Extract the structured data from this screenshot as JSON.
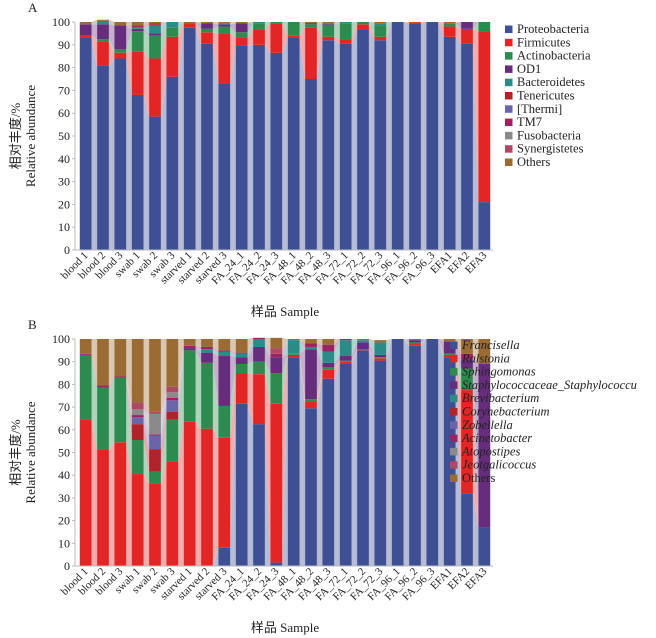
{
  "chart_data": [
    {
      "type": "bar",
      "stacked": true,
      "panel": "A",
      "title": "",
      "xlabel": "样品 Sample",
      "ylabel_cn": "相对丰度/%",
      "ylabel": "Relative abundance",
      "ylim": [
        0,
        100
      ],
      "yticks": [
        0,
        10,
        20,
        30,
        40,
        50,
        60,
        70,
        80,
        90,
        100
      ],
      "legend_position": "right",
      "categories": [
        "blood 1",
        "blood 2",
        "blood 3",
        "swab 1",
        "swab 2",
        "swab 3",
        "starved 1",
        "starved 2",
        "starved 3",
        "FA_24_1",
        "FA_24_2",
        "FA_24_3",
        "FA_48_1",
        "FA_48_2",
        "FA_48_3",
        "FA_72_1",
        "FA_72_2",
        "FA_72_3",
        "FA_96_1",
        "FA_96_2",
        "FA_96_3",
        "EFA1",
        "EFA2",
        "EFA3"
      ],
      "series": [
        {
          "name": "Proteobacteria",
          "italic": false,
          "color": "#3f4f94",
          "values": [
            93,
            81,
            84,
            68,
            58.5,
            76,
            97.5,
            90.5,
            73,
            89.5,
            90,
            86.5,
            93,
            75,
            92,
            90.5,
            96.5,
            92,
            100,
            99.5,
            100,
            93.5,
            90.5,
            21
          ]
        },
        {
          "name": "Firmicutes",
          "italic": false,
          "color": "#e32526",
          "values": [
            1,
            10.5,
            2.5,
            19,
            25.5,
            17.5,
            2,
            5,
            22,
            3.5,
            6.5,
            13,
            1,
            22.5,
            1.5,
            2,
            2.5,
            1.5,
            0,
            0.3,
            0,
            4.5,
            6.5,
            75
          ]
        },
        {
          "name": "Actinobacteria",
          "italic": false,
          "color": "#2e8b4f",
          "values": [
            0,
            1,
            1.5,
            9,
            10,
            4,
            0,
            1.5,
            3,
            2.5,
            3,
            0.5,
            6,
            1.5,
            5,
            7,
            1,
            5,
            0,
            0,
            0,
            1.5,
            0,
            4
          ]
        },
        {
          "name": "OD1",
          "italic": false,
          "color": "#662d7c",
          "values": [
            5,
            6.5,
            10.5,
            1,
            1,
            0,
            0,
            2.5,
            1,
            4,
            0,
            0,
            0,
            0.5,
            0.5,
            0,
            0,
            0,
            0,
            0,
            0,
            0,
            3,
            0
          ]
        },
        {
          "name": "Bacteroidetes",
          "italic": false,
          "color": "#2a8b87",
          "values": [
            0,
            1.5,
            0,
            0.5,
            3.5,
            2.5,
            0,
            0,
            0.5,
            0,
            0.5,
            0,
            0,
            0,
            0.5,
            0.5,
            0,
            1,
            0,
            0,
            0,
            0,
            0,
            0
          ]
        },
        {
          "name": "Tenericutes",
          "italic": false,
          "color": "#b1232b",
          "values": [
            0,
            0,
            0,
            0.5,
            0.5,
            0,
            0,
            0,
            0,
            0,
            0,
            0,
            0,
            0,
            0,
            0,
            0,
            0,
            0,
            0,
            0,
            0,
            0,
            0
          ]
        },
        {
          "name": "[Thermi]",
          "italic": false,
          "color": "#6a64a8",
          "values": [
            0,
            0,
            0,
            0,
            0,
            0,
            0,
            0,
            0,
            0,
            0,
            0,
            0,
            0,
            0,
            0,
            0,
            0,
            0,
            0,
            0,
            0,
            0,
            0
          ]
        },
        {
          "name": "TM7",
          "italic": false,
          "color": "#9b2263",
          "values": [
            0,
            0,
            0,
            0.5,
            0.5,
            0,
            0,
            0,
            0,
            0,
            0,
            0,
            0,
            0,
            0,
            0,
            0,
            0,
            0,
            0,
            0,
            0,
            0,
            0
          ]
        },
        {
          "name": "Fusobacteria",
          "italic": false,
          "color": "#8a8a8a",
          "values": [
            0,
            0,
            0,
            0,
            0,
            0,
            0,
            0,
            0,
            0,
            0,
            0,
            0,
            0,
            0,
            0,
            0,
            0,
            0,
            0,
            0,
            0,
            0,
            0
          ]
        },
        {
          "name": "Synergistetes",
          "italic": false,
          "color": "#ad4a63",
          "values": [
            0,
            0,
            0,
            0,
            0,
            0,
            0,
            0,
            0,
            0,
            0,
            0,
            0,
            0,
            0,
            0,
            0,
            0,
            0,
            0,
            0,
            0,
            0,
            0
          ]
        },
        {
          "name": "Others",
          "italic": false,
          "color": "#9a6b32",
          "values": [
            1,
            0.5,
            1.5,
            1.5,
            0.5,
            0,
            0.5,
            0.5,
            0.5,
            0.5,
            0,
            0,
            0,
            0.5,
            0.5,
            0,
            0,
            0.5,
            0,
            0.2,
            0,
            0.5,
            0,
            0
          ]
        }
      ]
    },
    {
      "type": "bar",
      "stacked": true,
      "panel": "B",
      "title": "",
      "xlabel": "样品 Sample",
      "ylabel_cn": "相对丰度/%",
      "ylabel": "Relative abundance",
      "ylim": [
        0,
        100
      ],
      "yticks": [
        0,
        10,
        20,
        30,
        40,
        50,
        60,
        70,
        80,
        90,
        100
      ],
      "legend_position": "right",
      "categories": [
        "blood 1",
        "blood 2",
        "blood 3",
        "swab 1",
        "swab 2",
        "swab 3",
        "starved 1",
        "starved 2",
        "starved 3",
        "FA_24_1",
        "FA_24_2",
        "FA_24_3",
        "FA_48_1",
        "FA_48_2",
        "FA_48_3",
        "FA_72_1",
        "FA_72_2",
        "FA_72_3",
        "FA_96_1",
        "FA_96_2",
        "FA_96_3",
        "EFA1",
        "EFA2",
        "EFA3"
      ],
      "series": [
        {
          "name": "Francisella",
          "italic": true,
          "color": "#3f4f94",
          "values": [
            0,
            0,
            0,
            0,
            0,
            0,
            0,
            0,
            8,
            71.5,
            62.5,
            1.5,
            92,
            69.5,
            82.5,
            89,
            95,
            90.5,
            100,
            97,
            100,
            92,
            32,
            17
          ]
        },
        {
          "name": "Ralstonia",
          "italic": true,
          "color": "#e32526",
          "values": [
            64.5,
            51.5,
            54.5,
            40.5,
            36.5,
            46,
            63.5,
            60.5,
            48.5,
            13.5,
            22,
            70,
            1,
            3,
            4,
            1,
            0.5,
            1,
            0,
            1,
            0,
            1,
            45.5,
            0
          ]
        },
        {
          "name": "Sphingomonas",
          "italic": true,
          "color": "#2e8b4f",
          "values": [
            28.5,
            27,
            28.5,
            15,
            5,
            18.5,
            31.5,
            29,
            14,
            4,
            5.5,
            13.5,
            0.5,
            1,
            1,
            0.5,
            0,
            0.5,
            0,
            0.5,
            0,
            0.5,
            9.5,
            0
          ]
        },
        {
          "name": "Staphylococcaceae_Staphylococcu",
          "italic": true,
          "color": "#662d7c",
          "values": [
            0,
            0,
            0,
            0,
            0,
            0,
            1,
            4.5,
            22,
            3,
            6.5,
            7,
            0,
            22,
            2,
            2,
            3,
            1,
            0,
            1,
            0,
            5.5,
            4,
            72
          ]
        },
        {
          "name": "Brevibacterium",
          "italic": true,
          "color": "#2a8b87",
          "values": [
            0,
            0,
            0,
            0,
            0,
            0,
            0,
            1.5,
            2,
            1.5,
            3.5,
            0,
            6,
            1,
            5,
            7,
            1,
            5.5,
            0,
            0,
            0,
            0,
            0,
            0
          ]
        },
        {
          "name": "Corynebacterium",
          "italic": true,
          "color": "#b1232b",
          "values": [
            0,
            0,
            0,
            7,
            10,
            3.5,
            0,
            0,
            0,
            0,
            0,
            0,
            0,
            0,
            0,
            0,
            0,
            0,
            0,
            0,
            0,
            0,
            0,
            0
          ]
        },
        {
          "name": "Zobellella",
          "italic": true,
          "color": "#6a64a8",
          "values": [
            0,
            0,
            0,
            3,
            6,
            5,
            0,
            0,
            0,
            0,
            0,
            0,
            0,
            0,
            0,
            0,
            0,
            0,
            0,
            0,
            0,
            0,
            0,
            0
          ]
        },
        {
          "name": "Acinetobacter",
          "italic": true,
          "color": "#9b2263",
          "values": [
            0.5,
            1,
            0.5,
            1,
            0.5,
            1,
            1,
            1,
            0.5,
            0.5,
            0.5,
            1.5,
            0,
            1.5,
            3,
            0.5,
            0,
            0,
            0,
            0,
            0,
            0,
            2.5,
            0
          ]
        },
        {
          "name": "Atopostipes",
          "italic": true,
          "color": "#8a8a8a",
          "values": [
            0,
            0,
            0,
            2.5,
            9,
            2.5,
            0,
            0,
            0,
            0,
            0,
            0,
            0,
            0,
            0,
            0,
            0,
            0,
            0,
            0,
            0,
            0,
            0,
            0
          ]
        },
        {
          "name": "Jeotgalicoccus",
          "italic": true,
          "color": "#ad4a63",
          "values": [
            0,
            0,
            0,
            3,
            1,
            2.5,
            0,
            0,
            0,
            0,
            0,
            2.5,
            0,
            0,
            0,
            0,
            0,
            0,
            0,
            0,
            0,
            0,
            0,
            0
          ]
        },
        {
          "name": "Others",
          "italic": false,
          "color": "#9a6b32",
          "values": [
            6.5,
            20.5,
            16.5,
            28,
            32,
            21,
            3,
            3.5,
            5,
            6,
            0,
            4.5,
            0.5,
            2,
            2.5,
            0,
            0.5,
            1,
            0,
            0.5,
            0,
            1,
            6.5,
            11
          ]
        }
      ]
    }
  ]
}
